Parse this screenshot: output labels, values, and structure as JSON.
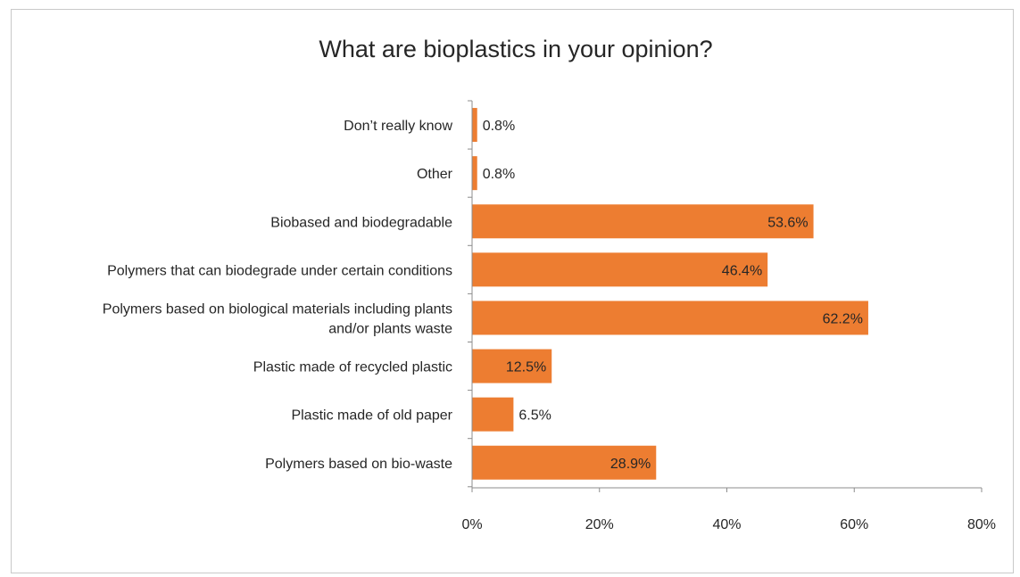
{
  "chart_data": {
    "type": "bar",
    "orientation": "horizontal",
    "title": "What are bioplastics in your opinion?",
    "xlabel": "",
    "ylabel": "",
    "categories": [
      "Don’t really know",
      "Other",
      "Biobased and biodegradable",
      "Polymers that can biodegrade under certain conditions",
      "Polymers based on biological materials including plants and/or plants waste",
      "Plastic made of recycled plastic",
      "Plastic made of old paper",
      "Polymers based on bio-waste"
    ],
    "category_lines": [
      [
        "Don’t really know"
      ],
      [
        "Other"
      ],
      [
        "Biobased and biodegradable"
      ],
      [
        "Polymers that can biodegrade under certain conditions"
      ],
      [
        "Polymers based on biological materials including plants",
        "and/or plants waste"
      ],
      [
        "Plastic made of recycled plastic"
      ],
      [
        "Plastic made of old paper"
      ],
      [
        "Polymers based on bio-waste"
      ]
    ],
    "values": [
      0.8,
      0.8,
      53.6,
      46.4,
      62.2,
      12.5,
      6.5,
      28.9
    ],
    "data_labels": [
      "0.8%",
      "0.8%",
      "53.6%",
      "46.4%",
      "62.2%",
      "12.5%",
      "6.5%",
      "28.9%"
    ],
    "xlim": [
      0,
      80
    ],
    "ticks": [
      0,
      20,
      40,
      60,
      80
    ],
    "tick_labels": [
      "0%",
      "20%",
      "40%",
      "60%",
      "80%"
    ],
    "grid": false,
    "legend": "none",
    "bar_color": "#ED7D31"
  }
}
